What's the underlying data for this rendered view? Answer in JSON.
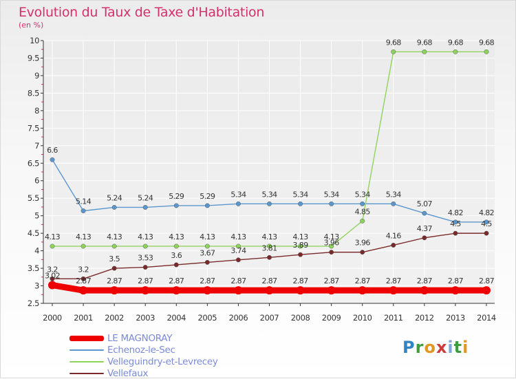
{
  "header": {
    "title": "Evolution du Taux de Taxe d'Habitation",
    "subtitle": "(en %)"
  },
  "colors": {
    "title": "#d6306b",
    "axis": "#333333",
    "grid": "#ffffff"
  },
  "logo": {
    "text": "Proxiti"
  },
  "chart_data": {
    "type": "line",
    "title": "Evolution du Taux de Taxe d'Habitation",
    "subtitle": "(en %)",
    "xlabel": "",
    "ylabel": "",
    "x": [
      "2000",
      "2001",
      "2002",
      "2003",
      "2004",
      "2005",
      "2006",
      "2007",
      "2008",
      "2009",
      "2010",
      "2011",
      "2012",
      "2013",
      "2014"
    ],
    "ylim": [
      2.5,
      10
    ],
    "yticks": [
      "2.5",
      "3",
      "3.5",
      "4",
      "4.5",
      "5",
      "5.5",
      "6",
      "6.5",
      "7",
      "7.5",
      "8",
      "8.5",
      "9",
      "9.5",
      "10"
    ],
    "legend_position": "bottom-left",
    "series": [
      {
        "name": "LE MAGNORAY",
        "color": "#ee0000",
        "values": [
          3.02,
          2.87,
          2.87,
          2.87,
          2.87,
          2.87,
          2.87,
          2.87,
          2.87,
          2.87,
          2.87,
          2.87,
          2.87,
          2.87,
          2.87
        ],
        "labels": [
          "3.02",
          "2.87",
          "2.87",
          "2.87",
          "2.87",
          "2.87",
          "2.87",
          "2.87",
          "2.87",
          "2.87",
          "2.87",
          "2.87",
          "2.87",
          "2.87",
          "2.87"
        ]
      },
      {
        "name": "Echenoz-le-Sec",
        "color": "#5b97cf",
        "values": [
          6.6,
          5.14,
          5.24,
          5.24,
          5.29,
          5.29,
          5.34,
          5.34,
          5.34,
          5.34,
          5.34,
          5.34,
          5.07,
          4.82,
          4.82
        ],
        "labels": [
          "6.6",
          "5.14",
          "5.24",
          "5.24",
          "5.29",
          "5.29",
          "5.34",
          "5.34",
          "5.34",
          "5.34",
          "5.34",
          "5.34",
          "5.07",
          "4.82",
          "4.82"
        ]
      },
      {
        "name": "Velleguindry-et-Levrecey",
        "color": "#8fd45a",
        "values": [
          4.13,
          4.13,
          4.13,
          4.13,
          4.13,
          4.13,
          4.13,
          4.13,
          4.13,
          4.13,
          4.85,
          9.68,
          9.68,
          9.68,
          9.68
        ],
        "labels": [
          "4.13",
          "4.13",
          "4.13",
          "4.13",
          "4.13",
          "4.13",
          "4.13",
          "4.13",
          "4.13",
          "4.13",
          "4.85",
          "9.68",
          "9.68",
          "9.68",
          "9.68"
        ]
      },
      {
        "name": "Vellefaux",
        "color": "#7a2a2a",
        "values": [
          3.2,
          3.2,
          3.5,
          3.53,
          3.6,
          3.67,
          3.74,
          3.81,
          3.89,
          3.96,
          3.96,
          4.16,
          4.37,
          4.5,
          4.5
        ],
        "labels": [
          "3.2",
          "3.2",
          "3.5",
          "3.53",
          "3.6",
          "3.67",
          "3.74",
          "3.81",
          "3.89",
          "3.96",
          "3.96",
          "4.16",
          "4.37",
          "4.5",
          "4.5"
        ]
      }
    ]
  }
}
